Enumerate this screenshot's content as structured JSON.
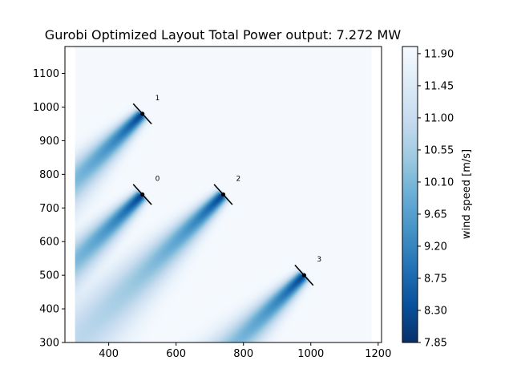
{
  "chart_data": {
    "type": "heatmap",
    "title": "Gurobi Optimized Layout Total Power output: 7.272 MW",
    "xlabel": "",
    "ylabel": "",
    "xlim": [
      270,
      1210
    ],
    "ylim": [
      300,
      1180
    ],
    "data_extent": {
      "x": [
        300,
        1180
      ],
      "y": [
        300,
        1180
      ]
    },
    "x_ticks": [
      400,
      600,
      800,
      1000,
      1200
    ],
    "y_ticks": [
      300,
      400,
      500,
      600,
      700,
      800,
      900,
      1000,
      1100
    ],
    "free_stream_wind_speed": 11.95,
    "wind_direction": "from upper-right toward lower-left",
    "turbines": [
      {
        "id": "0",
        "x": 500,
        "y": 740
      },
      {
        "id": "1",
        "x": 500,
        "y": 980
      },
      {
        "id": "2",
        "x": 740,
        "y": 740
      },
      {
        "id": "3",
        "x": 980,
        "y": 500
      }
    ],
    "colorbar": {
      "label": "wind speed [m/s]",
      "min": 7.85,
      "max": 12.0,
      "ticks": [
        "7.85",
        "8.30",
        "8.75",
        "9.20",
        "9.65",
        "10.10",
        "10.55",
        "11.00",
        "11.45",
        "11.90"
      ],
      "colormap": "Blues_r",
      "colors": [
        "#08306b",
        "#08519c",
        "#2171b5",
        "#4292c6",
        "#6baed6",
        "#9ecae1",
        "#c6dbef",
        "#deebf7",
        "#f7fbff"
      ]
    },
    "grid": false
  }
}
